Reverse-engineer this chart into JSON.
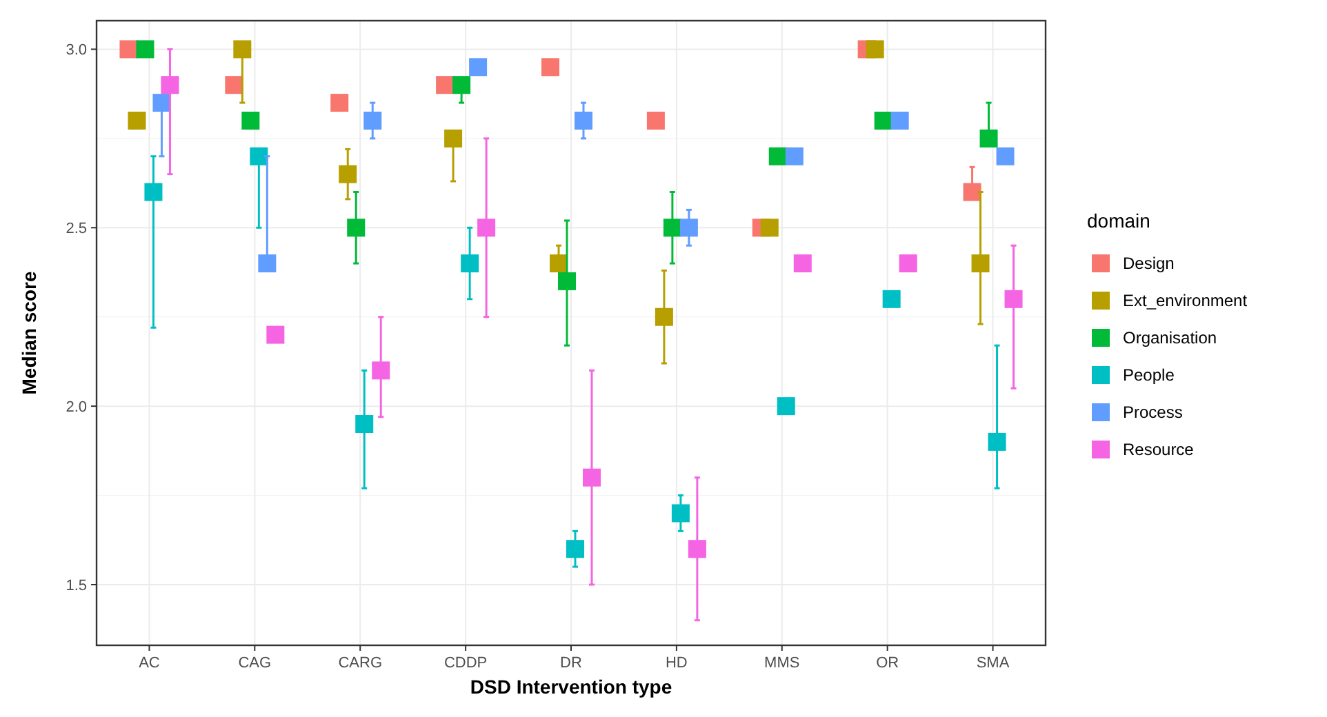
{
  "chart_data": {
    "type": "scatter",
    "xlabel": "DSD Intervention type",
    "ylabel": "Median score",
    "legend_title": "domain",
    "categories": [
      "AC",
      "CAG",
      "CARG",
      "CDDP",
      "DR",
      "HD",
      "MMS",
      "OR",
      "SMA"
    ],
    "series": [
      {
        "name": "Design",
        "color": "#f8766d",
        "values": [
          3.0,
          2.9,
          2.85,
          2.9,
          2.95,
          2.8,
          2.5,
          3.0,
          2.6
        ],
        "errors": [
          null,
          null,
          null,
          null,
          null,
          null,
          null,
          null,
          [
            2.6,
            2.67
          ]
        ]
      },
      {
        "name": "Ext_environment",
        "color": "#b79f00",
        "values": [
          2.8,
          3.0,
          2.65,
          2.75,
          2.4,
          2.25,
          2.5,
          3.0,
          2.4
        ],
        "errors": [
          null,
          [
            2.85,
            3.0
          ],
          [
            2.58,
            2.72
          ],
          [
            2.63,
            2.75
          ],
          [
            2.4,
            2.45
          ],
          [
            2.12,
            2.38
          ],
          null,
          null,
          [
            2.23,
            2.6
          ]
        ]
      },
      {
        "name": "Organisation",
        "color": "#00ba38",
        "values": [
          3.0,
          2.8,
          2.5,
          2.9,
          2.35,
          2.5,
          2.7,
          2.8,
          2.75
        ],
        "errors": [
          null,
          null,
          [
            2.4,
            2.6
          ],
          [
            2.85,
            2.9
          ],
          [
            2.17,
            2.52
          ],
          [
            2.4,
            2.6
          ],
          null,
          null,
          [
            2.75,
            2.85
          ]
        ]
      },
      {
        "name": "People",
        "color": "#00bfc4",
        "values": [
          2.6,
          2.7,
          1.95,
          2.4,
          1.6,
          1.7,
          2.0,
          2.3,
          1.9
        ],
        "errors": [
          [
            2.22,
            2.7
          ],
          [
            2.5,
            2.7
          ],
          [
            1.77,
            2.1
          ],
          [
            2.3,
            2.5
          ],
          [
            1.55,
            1.65
          ],
          [
            1.65,
            1.75
          ],
          null,
          null,
          [
            1.77,
            2.17
          ]
        ]
      },
      {
        "name": "Process",
        "color": "#619cff",
        "values": [
          2.85,
          2.4,
          2.8,
          2.95,
          2.8,
          2.5,
          2.7,
          2.8,
          2.7
        ],
        "errors": [
          [
            2.7,
            2.85
          ],
          [
            2.4,
            2.7
          ],
          [
            2.75,
            2.85
          ],
          null,
          [
            2.75,
            2.85
          ],
          [
            2.45,
            2.55
          ],
          null,
          null,
          null
        ]
      },
      {
        "name": "Resource",
        "color": "#f564e3",
        "values": [
          2.9,
          2.2,
          2.1,
          2.5,
          1.8,
          1.6,
          2.4,
          2.4,
          2.3
        ],
        "errors": [
          [
            2.65,
            3.0
          ],
          null,
          [
            1.97,
            2.25
          ],
          [
            2.25,
            2.75
          ],
          [
            1.5,
            2.1
          ],
          [
            1.4,
            1.8
          ],
          null,
          null,
          [
            2.05,
            2.45
          ]
        ]
      }
    ],
    "ylim": [
      1.33,
      3.08
    ],
    "yticks": [
      {
        "value": 1.5,
        "label": "1.5"
      },
      {
        "value": 2,
        "label": "2.0"
      },
      {
        "value": 2.5,
        "label": "2.5"
      },
      {
        "value": 3,
        "label": "3.0"
      }
    ],
    "grid": true,
    "legend": "right",
    "marker": "square"
  }
}
